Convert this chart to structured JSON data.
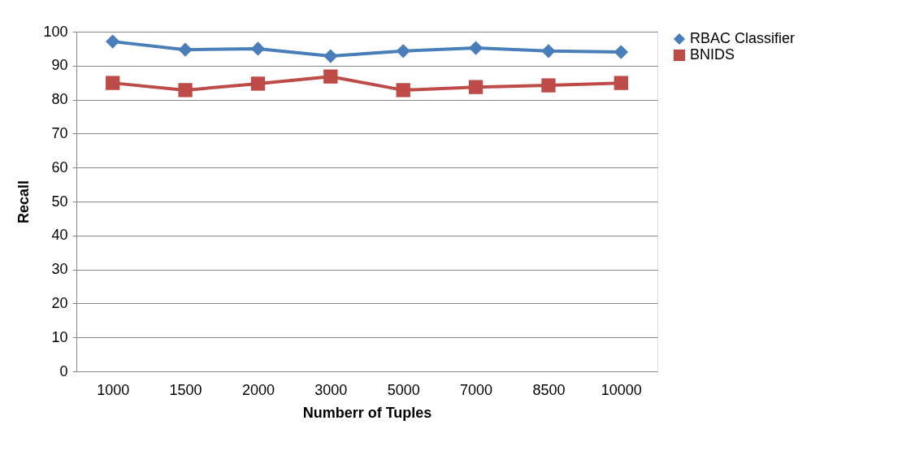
{
  "chart_data": {
    "type": "line",
    "xlabel": "Numberr of Tuples",
    "ylabel": "Recall",
    "categories": [
      "1000",
      "1500",
      "2000",
      "3000",
      "5000",
      "7000",
      "8500",
      "10000"
    ],
    "series": [
      {
        "name": "RBAC Classifier",
        "color": "#4a7ebb",
        "marker": "diamond",
        "values": [
          97.1,
          94.7,
          95.0,
          92.8,
          94.3,
          95.2,
          94.3,
          94.0
        ]
      },
      {
        "name": "BNIDS",
        "color": "#be4b48",
        "marker": "square",
        "values": [
          84.9,
          82.8,
          84.7,
          86.8,
          82.8,
          83.7,
          84.2,
          84.9
        ]
      }
    ],
    "ylim": [
      0,
      100
    ],
    "yticks": [
      0,
      10,
      20,
      30,
      40,
      50,
      60,
      70,
      80,
      90,
      100
    ],
    "grid": "y",
    "legend": "right",
    "line_style": "solid"
  }
}
